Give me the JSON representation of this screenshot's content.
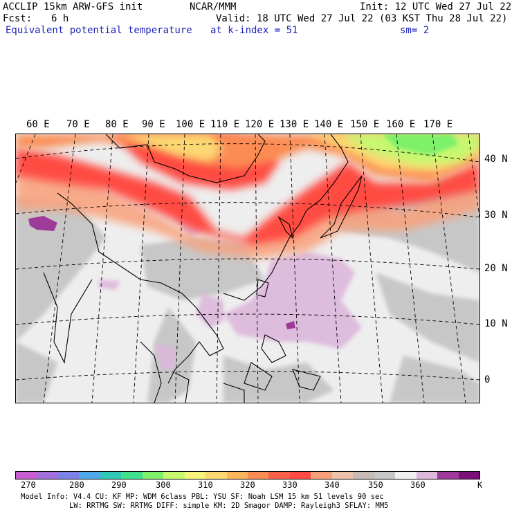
{
  "header": {
    "title": "ACCLIP 15km ARW-GFS init",
    "org": "NCAR/MMM",
    "init": "Init: 12 UTC Wed 27 Jul 22",
    "fcst_label": "Fcst:",
    "fcst_value": "6 h",
    "valid": "Valid: 18 UTC Wed 27 Jul 22 (03 KST Thu 28 Jul 22)",
    "field_name": "Equivalent potential temperature",
    "level": "at k-index =  51",
    "smoothing": "sm= 2"
  },
  "map": {
    "lon_labels": [
      "60 E",
      "70 E",
      "80 E",
      "90 E",
      "100 E",
      "110 E",
      "120 E",
      "130 E",
      "140 E",
      "150 E",
      "160 E",
      "170 E"
    ],
    "lat_labels": [
      "40 N",
      "30 N",
      "20 N",
      "10 N",
      "0"
    ]
  },
  "colorbar": {
    "unit": "K",
    "labels": [
      "270",
      "280",
      "290",
      "300",
      "310",
      "320",
      "330",
      "340",
      "350",
      "360"
    ],
    "colors": [
      "#c85fd0",
      "#a26ed9",
      "#7c82e6",
      "#4fa8e8",
      "#30c9b8",
      "#3fe08e",
      "#7ef06a",
      "#c6f870",
      "#f5f57a",
      "#fcd873",
      "#fbb65c",
      "#fb8c53",
      "#f96049",
      "#ff4c42",
      "#f9a07a",
      "#eec2a8",
      "#c6bcb5",
      "#c7c7c7",
      "#f0f0f0",
      "#ddb7dc",
      "#9e3a9a",
      "#7a1078"
    ]
  },
  "footer": {
    "line1": "Model Info: V4.4     CU: KF       MP: WDM 6class  PBL: YSU      SF: Noah LSM     15 km   51 levels   90 sec",
    "line2": "LW: RRTMG     SW: RRTMG   DIFF: simple KM: 2D Smagor DAMP: Rayleigh3  SFLAY: MM5"
  }
}
